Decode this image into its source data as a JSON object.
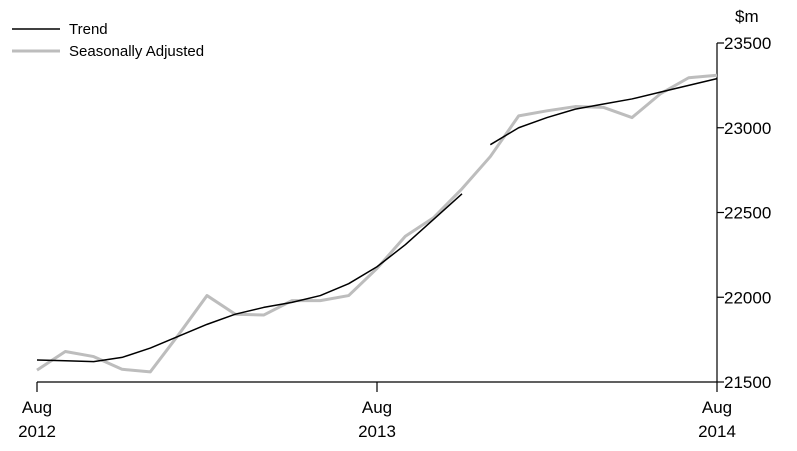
{
  "chart_data": {
    "type": "line",
    "ylabel": "$m",
    "ylim": [
      21500,
      23500
    ],
    "yticks": [
      21500,
      22000,
      22500,
      23000,
      23500
    ],
    "xlim": [
      0,
      24
    ],
    "xticks": [
      {
        "pos": 0,
        "month": "Aug",
        "year": "2012"
      },
      {
        "pos": 12,
        "month": "Aug",
        "year": "2013"
      },
      {
        "pos": 24,
        "month": "Aug",
        "year": "2014"
      }
    ],
    "legend_position": "top-left",
    "grid": false,
    "series": [
      {
        "name": "Trend",
        "color": "#000000",
        "segments": [
          {
            "x": [
              0,
              1,
              2,
              3,
              4,
              5,
              6,
              7,
              8,
              9,
              10,
              11,
              12,
              13,
              14,
              15
            ],
            "y": [
              21630,
              21625,
              21620,
              21645,
              21700,
              21770,
              21840,
              21900,
              21940,
              21970,
              22010,
              22080,
              22180,
              22310,
              22460,
              22610
            ]
          },
          {
            "x": [
              16,
              17,
              18,
              19,
              20,
              21,
              22,
              23,
              24
            ],
            "y": [
              22900,
              23000,
              23060,
              23110,
              23140,
              23170,
              23210,
              23250,
              23290
            ]
          }
        ]
      },
      {
        "name": "Seasonally Adjusted",
        "color": "#bdbdbd",
        "segments": [
          {
            "x": [
              0,
              1,
              2,
              3,
              4,
              5,
              6,
              7,
              8,
              9,
              10,
              11,
              12,
              13,
              14,
              15,
              16,
              17,
              18,
              19,
              20,
              21,
              22,
              23,
              24
            ],
            "y": [
              21570,
              21680,
              21650,
              21575,
              21560,
              21780,
              22010,
              21900,
              21895,
              21980,
              21980,
              22010,
              22170,
              22360,
              22470,
              22640,
              22830,
              23070,
              23100,
              23125,
              23120,
              23060,
              23200,
              23295,
              23310
            ]
          }
        ]
      }
    ]
  }
}
